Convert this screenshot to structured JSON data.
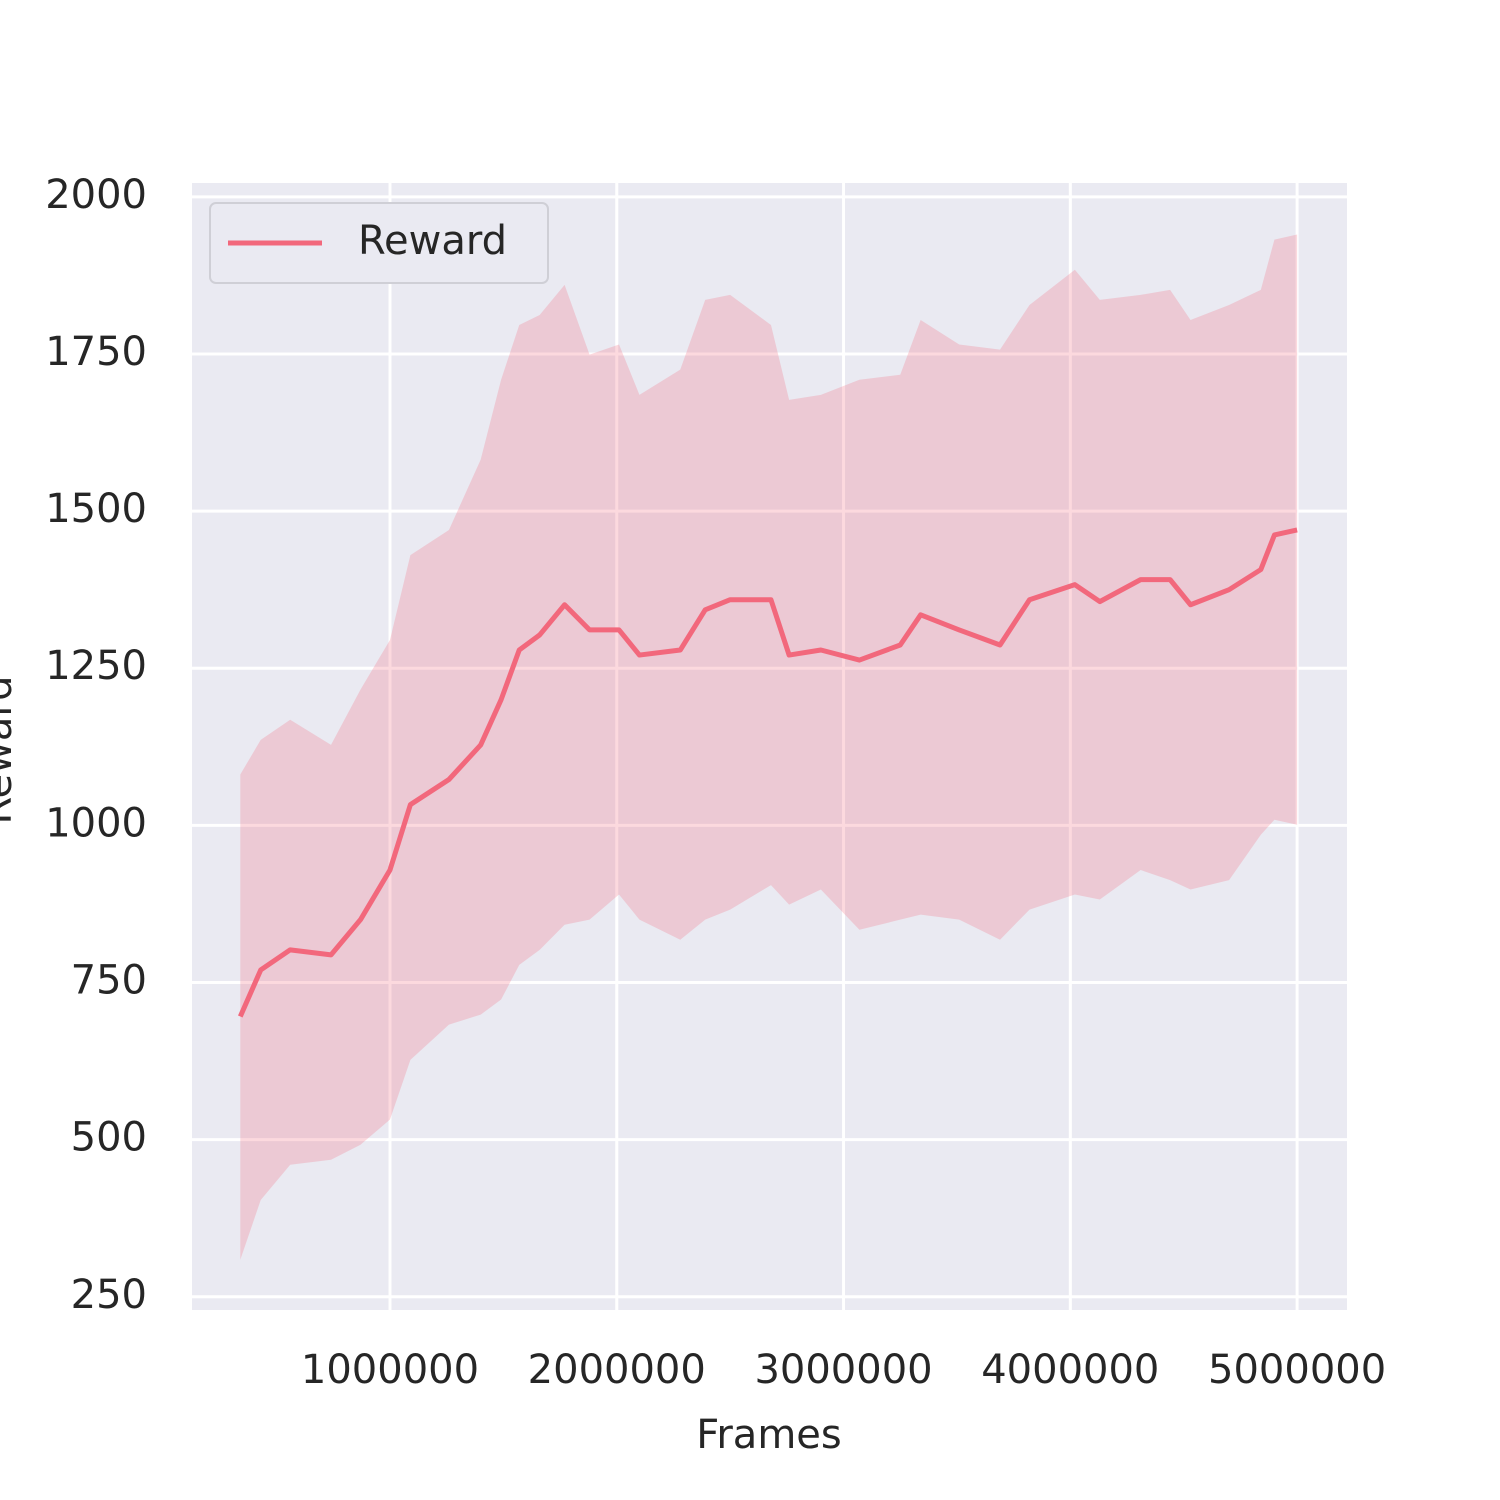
{
  "chart_data": {
    "type": "line",
    "x_label": "Frames",
    "y_label": "Reward",
    "x": [
      340000,
      430000,
      560000,
      740000,
      870000,
      1000000,
      1090000,
      1260000,
      1400000,
      1490000,
      1570000,
      1660000,
      1770000,
      1880000,
      2010000,
      2100000,
      2280000,
      2390000,
      2500000,
      2680000,
      2760000,
      2900000,
      3070000,
      3250000,
      3340000,
      3510000,
      3690000,
      3820000,
      4020000,
      4130000,
      4310000,
      4440000,
      4530000,
      4700000,
      4840000,
      4900000,
      5000000
    ],
    "series": [
      {
        "name": "Reward",
        "color": "#f2687c",
        "values": [
          696,
          770,
          802,
          794,
          850,
          929,
          1033,
          1073,
          1128,
          1200,
          1279,
          1303,
          1351,
          1311,
          1311,
          1271,
          1279,
          1343,
          1359,
          1359,
          1271,
          1279,
          1263,
          1287,
          1335,
          1311,
          1287,
          1359,
          1383,
          1356,
          1391,
          1391,
          1351,
          1375,
          1407,
          1462,
          1470
        ],
        "upper": [
          1081,
          1136,
          1168,
          1128,
          1216,
          1295,
          1430,
          1470,
          1582,
          1709,
          1796,
          1812,
          1860,
          1749,
          1765,
          1685,
          1725,
          1836,
          1844,
          1796,
          1677,
          1685,
          1709,
          1717,
          1804,
          1765,
          1757,
          1828,
          1884,
          1836,
          1844,
          1852,
          1804,
          1828,
          1852,
          1932,
          1940
        ],
        "lower": [
          309,
          404,
          460,
          468,
          492,
          532,
          627,
          683,
          699,
          723,
          778,
          802,
          842,
          850,
          890,
          850,
          818,
          850,
          866,
          905,
          874,
          898,
          834,
          850,
          858,
          850,
          818,
          866,
          890,
          882,
          929,
          913,
          898,
          913,
          985,
          1009,
          1001
        ]
      }
    ],
    "xlim": [
      127000,
      5220000
    ],
    "ylim": [
      229,
      2022
    ],
    "xticks": [
      1000000,
      2000000,
      3000000,
      4000000,
      5000000
    ],
    "yticks": [
      250,
      500,
      750,
      1000,
      1250,
      1500,
      1750,
      2000
    ],
    "grid": true,
    "legend": "upper left"
  }
}
